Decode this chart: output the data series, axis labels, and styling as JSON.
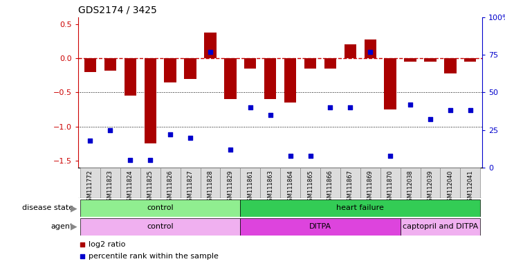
{
  "title": "GDS2174 / 3425",
  "samples": [
    "GSM111772",
    "GSM111823",
    "GSM111824",
    "GSM111825",
    "GSM111826",
    "GSM111827",
    "GSM111828",
    "GSM111829",
    "GSM111861",
    "GSM111863",
    "GSM111864",
    "GSM111865",
    "GSM111866",
    "GSM111867",
    "GSM111869",
    "GSM111870",
    "GSM112038",
    "GSM112039",
    "GSM112040",
    "GSM112041"
  ],
  "log2_ratio": [
    -0.2,
    -0.18,
    -0.55,
    -1.25,
    -0.35,
    -0.3,
    0.38,
    -0.6,
    -0.15,
    -0.6,
    -0.65,
    -0.15,
    -0.15,
    0.2,
    0.28,
    -0.75,
    -0.05,
    -0.05,
    -0.22,
    -0.05
  ],
  "percentile_rank": [
    18,
    25,
    5,
    5,
    22,
    20,
    77,
    12,
    40,
    35,
    8,
    8,
    40,
    40,
    77,
    8,
    42,
    32,
    38,
    38
  ],
  "disease_state_groups": [
    {
      "label": "control",
      "start": 0,
      "end": 7,
      "color": "#90EE90"
    },
    {
      "label": "heart failure",
      "start": 8,
      "end": 19,
      "color": "#33CC55"
    }
  ],
  "agent_groups": [
    {
      "label": "control",
      "start": 0,
      "end": 7,
      "color": "#F0B0F0"
    },
    {
      "label": "DITPA",
      "start": 8,
      "end": 15,
      "color": "#DD44DD"
    },
    {
      "label": "captopril and DITPA",
      "start": 16,
      "end": 19,
      "color": "#F0B0F0"
    }
  ],
  "bar_color": "#AA0000",
  "dot_color": "#0000CC",
  "ref_line_color": "#CC0000",
  "grid_color": "#000000",
  "bg_color": "#FFFFFF",
  "ylim_left": [
    -1.6,
    0.6
  ],
  "ylim_right": [
    0,
    100
  ],
  "right_ticks": [
    0,
    25,
    50,
    75,
    100
  ],
  "right_tick_labels": [
    "0",
    "25",
    "50",
    "75",
    "100%"
  ],
  "left_ticks": [
    -1.5,
    -1.0,
    -0.5,
    0.0,
    0.5
  ],
  "legend_items": [
    {
      "label": "log2 ratio",
      "color": "#AA0000"
    },
    {
      "label": "percentile rank within the sample",
      "color": "#0000CC"
    }
  ]
}
